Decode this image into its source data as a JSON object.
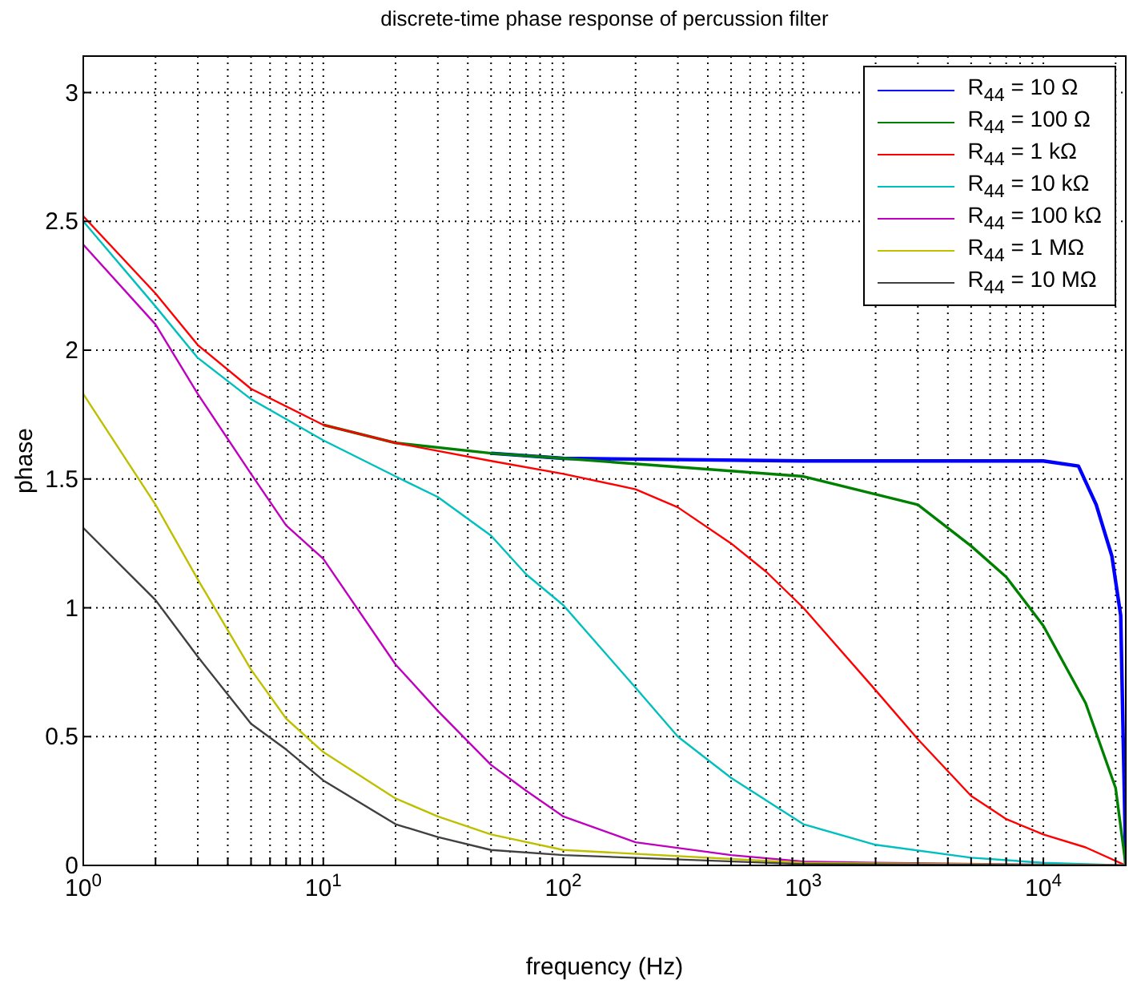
{
  "chart_data": {
    "type": "line",
    "title": "discrete-time phase response of percussion filter",
    "xlabel": "frequency (Hz)",
    "ylabel": "phase",
    "log": "x",
    "grid": true,
    "legend": "top right",
    "line_style": "solid",
    "xlim": [
      1,
      22050
    ],
    "ylim": [
      0,
      3.1416
    ],
    "xticks": [
      {
        "value": 1,
        "label": "10$^{0}$"
      },
      {
        "value": 2,
        "label": null
      },
      {
        "value": 3,
        "label": null
      },
      {
        "value": 4,
        "label": null
      },
      {
        "value": 5,
        "label": null
      },
      {
        "value": 6,
        "label": null
      },
      {
        "value": 7,
        "label": null
      },
      {
        "value": 8,
        "label": null
      },
      {
        "value": 9,
        "label": null
      },
      {
        "value": 10,
        "label": "10$^{1}$"
      },
      {
        "value": 20,
        "label": null
      },
      {
        "value": 30,
        "label": null
      },
      {
        "value": 40,
        "label": null
      },
      {
        "value": 50,
        "label": null
      },
      {
        "value": 60,
        "label": null
      },
      {
        "value": 70,
        "label": null
      },
      {
        "value": 80,
        "label": null
      },
      {
        "value": 90,
        "label": null
      },
      {
        "value": 100,
        "label": "10$^{2}$"
      },
      {
        "value": 200,
        "label": null
      },
      {
        "value": 300,
        "label": null
      },
      {
        "value": 400,
        "label": null
      },
      {
        "value": 500,
        "label": null
      },
      {
        "value": 600,
        "label": null
      },
      {
        "value": 700,
        "label": null
      },
      {
        "value": 800,
        "label": null
      },
      {
        "value": 900,
        "label": null
      },
      {
        "value": 1000,
        "label": "10$^{3}$"
      },
      {
        "value": 2000,
        "label": null
      },
      {
        "value": 3000,
        "label": null
      },
      {
        "value": 4000,
        "label": null
      },
      {
        "value": 5000,
        "label": null
      },
      {
        "value": 6000,
        "label": null
      },
      {
        "value": 7000,
        "label": null
      },
      {
        "value": 8000,
        "label": null
      },
      {
        "value": 9000,
        "label": null
      },
      {
        "value": 10000,
        "label": "10$^{4}$"
      },
      {
        "value": 20000,
        "label": null
      }
    ],
    "yticks": [
      0,
      0.5,
      1,
      1.5,
      2,
      2.5,
      3
    ],
    "series": [
      {
        "name": "R$_{44}$ = 10 Ω",
        "color": "#0000ff",
        "x": [
          50,
          100,
          1000,
          10000,
          14000,
          16600,
          19300,
          21000,
          22050
        ],
        "values": [
          1.6,
          1.58,
          1.57,
          1.57,
          1.55,
          1.4,
          1.2,
          0.97,
          0
        ]
      },
      {
        "name": "R$_{44}$ = 100 Ω",
        "color": "#008000",
        "x": [
          10,
          20,
          50,
          100,
          1000,
          3000,
          5000,
          7000,
          10000,
          15000,
          20000,
          22050
        ],
        "values": [
          1.71,
          1.64,
          1.6,
          1.58,
          1.51,
          1.4,
          1.24,
          1.12,
          0.93,
          0.63,
          0.3,
          0
        ]
      },
      {
        "name": "R$_{44}$ = 1 kΩ",
        "color": "#ff0000",
        "x": [
          1,
          2,
          3,
          5,
          10,
          20,
          50,
          100,
          200,
          300,
          500,
          700,
          1000,
          2000,
          3000,
          5000,
          7000,
          10000,
          15000,
          22050
        ],
        "values": [
          2.52,
          2.22,
          2.02,
          1.85,
          1.71,
          1.64,
          1.57,
          1.52,
          1.46,
          1.39,
          1.25,
          1.14,
          1.0,
          0.68,
          0.49,
          0.27,
          0.18,
          0.12,
          0.07,
          0
        ]
      },
      {
        "name": "R$_{44}$ = 10 kΩ",
        "color": "#00bfbf",
        "x": [
          1,
          2,
          3,
          5,
          10,
          20,
          30,
          50,
          70,
          100,
          200,
          300,
          500,
          1000,
          2000,
          5000,
          10000,
          22050
        ],
        "values": [
          2.5,
          2.17,
          1.97,
          1.81,
          1.65,
          1.51,
          1.43,
          1.28,
          1.13,
          1.01,
          0.69,
          0.5,
          0.34,
          0.16,
          0.08,
          0.03,
          0.01,
          0
        ]
      },
      {
        "name": "R$_{44}$ = 100 kΩ",
        "color": "#bf00bf",
        "x": [
          1,
          2,
          3,
          5,
          7,
          10,
          20,
          30,
          50,
          70,
          100,
          200,
          500,
          1000,
          2000,
          22050
        ],
        "values": [
          2.41,
          2.1,
          1.83,
          1.52,
          1.32,
          1.19,
          0.78,
          0.6,
          0.39,
          0.29,
          0.19,
          0.09,
          0.04,
          0.015,
          0.01,
          0
        ]
      },
      {
        "name": "R$_{44}$ = 1 MΩ",
        "color": "#bfbf00",
        "x": [
          1,
          2,
          3,
          5,
          7,
          10,
          20,
          30,
          50,
          100,
          1000,
          22050
        ],
        "values": [
          1.83,
          1.4,
          1.11,
          0.76,
          0.57,
          0.44,
          0.26,
          0.19,
          0.12,
          0.06,
          0.01,
          0
        ]
      },
      {
        "name": "R$_{44}$ = 10 MΩ",
        "color": "#404040",
        "x": [
          1,
          2,
          3,
          5,
          7,
          10,
          20,
          30,
          50,
          100,
          1000,
          22050
        ],
        "values": [
          1.31,
          1.03,
          0.81,
          0.55,
          0.45,
          0.33,
          0.16,
          0.11,
          0.06,
          0.04,
          0.005,
          0
        ]
      }
    ]
  }
}
